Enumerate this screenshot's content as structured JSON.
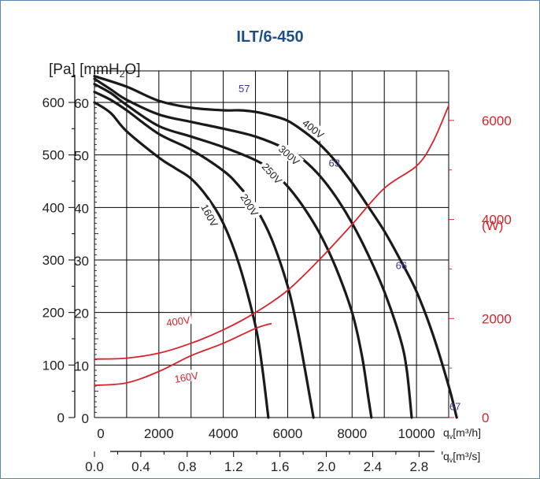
{
  "chart_data": {
    "type": "line",
    "title": "ILT/6-450",
    "y_units_label": {
      "pa": "[Pa]",
      "mmh2o_main": "[mmH",
      "mmh2o_sub": "2",
      "mmh2o_end": "O]"
    },
    "power_label": "(W)",
    "x_label_m3h": {
      "prefix": "q",
      "sub": "v",
      "unit": "[m³/h]"
    },
    "x_label_m3s": {
      "prefix": "q",
      "sub": "v",
      "unit": "[m³/s]"
    },
    "xlim_m3h": [
      0,
      11000
    ],
    "ylim_pa": [
      0,
      660
    ],
    "ylim_mmh2o": [
      0,
      66
    ],
    "ylim_w": [
      0,
      7000
    ],
    "pa_ticks": [
      0,
      100,
      200,
      300,
      400,
      500,
      600
    ],
    "mmh2o_ticks": [
      0,
      10,
      20,
      30,
      40,
      50,
      60
    ],
    "w_ticks": [
      0,
      2000,
      4000,
      6000
    ],
    "m3h_ticks": [
      0,
      2000,
      4000,
      6000,
      8000,
      10000
    ],
    "m3s_ticks": [
      "0.0",
      "0.4",
      "0.8",
      "1.2",
      "1.6",
      "2.0",
      "2.4",
      "2.8"
    ],
    "pressure_series": [
      {
        "name": "400V",
        "points": [
          [
            0,
            650
          ],
          [
            1000,
            630
          ],
          [
            2000,
            603
          ],
          [
            3000,
            590
          ],
          [
            4000,
            585
          ],
          [
            4500,
            585
          ],
          [
            5000,
            582
          ],
          [
            5500,
            575
          ],
          [
            6000,
            565
          ],
          [
            6500,
            545
          ],
          [
            7000,
            520
          ],
          [
            7500,
            487
          ],
          [
            8000,
            447
          ],
          [
            8500,
            402
          ],
          [
            9000,
            355
          ],
          [
            9500,
            300
          ],
          [
            10000,
            240
          ],
          [
            10500,
            160
          ],
          [
            11000,
            60
          ],
          [
            11250,
            0
          ]
        ]
      },
      {
        "name": "300V",
        "points": [
          [
            0,
            645
          ],
          [
            500,
            625
          ],
          [
            1000,
            605
          ],
          [
            2000,
            577
          ],
          [
            3000,
            563
          ],
          [
            4000,
            550
          ],
          [
            5000,
            535
          ],
          [
            6000,
            510
          ],
          [
            6500,
            490
          ],
          [
            7000,
            460
          ],
          [
            7500,
            420
          ],
          [
            8000,
            370
          ],
          [
            8500,
            310
          ],
          [
            9000,
            240
          ],
          [
            9500,
            150
          ],
          [
            9700,
            90
          ],
          [
            9850,
            0
          ]
        ]
      },
      {
        "name": "250V",
        "points": [
          [
            0,
            635
          ],
          [
            500,
            618
          ],
          [
            1000,
            595
          ],
          [
            2000,
            555
          ],
          [
            3000,
            535
          ],
          [
            4000,
            515
          ],
          [
            5000,
            490
          ],
          [
            5500,
            470
          ],
          [
            6000,
            440
          ],
          [
            6500,
            400
          ],
          [
            7000,
            350
          ],
          [
            7500,
            285
          ],
          [
            8000,
            200
          ],
          [
            8300,
            120
          ],
          [
            8500,
            40
          ],
          [
            8600,
            0
          ]
        ]
      },
      {
        "name": "200V",
        "points": [
          [
            0,
            620
          ],
          [
            500,
            605
          ],
          [
            1000,
            585
          ],
          [
            2000,
            540
          ],
          [
            3000,
            510
          ],
          [
            4000,
            470
          ],
          [
            4500,
            440
          ],
          [
            5000,
            400
          ],
          [
            5500,
            340
          ],
          [
            6000,
            250
          ],
          [
            6300,
            170
          ],
          [
            6600,
            70
          ],
          [
            6800,
            0
          ]
        ]
      },
      {
        "name": "160V",
        "points": [
          [
            0,
            600
          ],
          [
            500,
            580
          ],
          [
            1000,
            545
          ],
          [
            2000,
            495
          ],
          [
            2500,
            475
          ],
          [
            3000,
            455
          ],
          [
            3500,
            420
          ],
          [
            4000,
            370
          ],
          [
            4500,
            290
          ],
          [
            5000,
            175
          ],
          [
            5200,
            100
          ],
          [
            5400,
            0
          ]
        ]
      }
    ],
    "power_series": [
      {
        "name": "400V",
        "points": [
          [
            0,
            1180
          ],
          [
            1000,
            1200
          ],
          [
            2000,
            1300
          ],
          [
            3000,
            1500
          ],
          [
            4000,
            1770
          ],
          [
            5000,
            2120
          ],
          [
            6000,
            2570
          ],
          [
            7000,
            3200
          ],
          [
            8000,
            3900
          ],
          [
            9000,
            4630
          ],
          [
            10000,
            5080
          ],
          [
            10500,
            5550
          ],
          [
            11000,
            6300
          ]
        ]
      },
      {
        "name": "160V",
        "points": [
          [
            0,
            650
          ],
          [
            1000,
            700
          ],
          [
            2000,
            930
          ],
          [
            3000,
            1250
          ],
          [
            4000,
            1500
          ],
          [
            5000,
            1800
          ],
          [
            5500,
            1900
          ]
        ]
      }
    ],
    "curve_labels": [
      {
        "text": "400V",
        "x": 6800,
        "y": 550,
        "angle": 38
      },
      {
        "text": "300V",
        "x": 6050,
        "y": 500,
        "angle": 42
      },
      {
        "text": "250V",
        "x": 5520,
        "y": 465,
        "angle": 48
      },
      {
        "text": "200V",
        "x": 4820,
        "y": 405,
        "angle": 58
      },
      {
        "text": "160V",
        "x": 3580,
        "y": 385,
        "angle": 62
      }
    ],
    "power_labels": [
      {
        "text": "400V",
        "x": 2600,
        "y": 1950,
        "angle": -8
      },
      {
        "text": "160V",
        "x": 2850,
        "y": 820,
        "angle": -10
      }
    ],
    "efficiency_labels": [
      {
        "text": "57",
        "x": 4650,
        "y": 627
      },
      {
        "text": "63",
        "x": 7450,
        "y": 485
      },
      {
        "text": "66",
        "x": 9530,
        "y": 290
      },
      {
        "text": "67",
        "x": 11200,
        "y": 22
      }
    ],
    "colors": {
      "grid": "#000000",
      "curve": "#1a1a1a",
      "power": "#d8232a",
      "title": "#1f4e86",
      "efficiency": "#3a3a8c",
      "frame": "#5a86b2"
    }
  }
}
